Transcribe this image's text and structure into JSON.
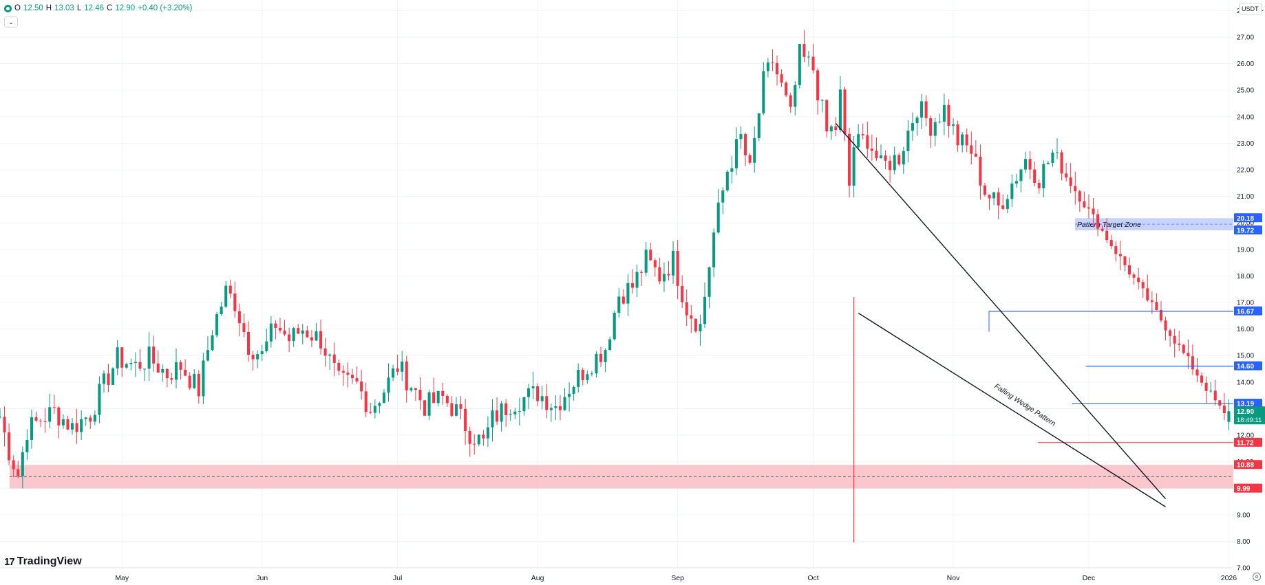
{
  "header": {
    "ohlc": {
      "open_label": "O",
      "open": "12.50",
      "high_label": "H",
      "high": "13.03",
      "low_label": "L",
      "low": "12.46",
      "close_label": "C",
      "close": "12.90",
      "change": "+0.40 (+3.20%)"
    },
    "collapse_icon": "chevron-down-icon"
  },
  "currency": {
    "label": "USDT",
    "icon": "chevron-down-icon"
  },
  "logo": {
    "mark": "17",
    "text": "TradingView"
  },
  "colors": {
    "up": "#089981",
    "down": "#f23645",
    "blue": "#2962ff",
    "support_zone": "#f9c1c6",
    "target_zone": "#c3ceff"
  },
  "chart_data": {
    "type": "candlestick",
    "title": "",
    "ylim": [
      7.0,
      28.4
    ],
    "y_ticks": [
      "7.00",
      "8.00",
      "9.00",
      "10.00",
      "11.00",
      "12.00",
      "13.00",
      "14.00",
      "15.00",
      "16.00",
      "17.00",
      "18.00",
      "19.00",
      "20.00",
      "21.00",
      "22.00",
      "23.00",
      "24.00",
      "25.00",
      "26.00",
      "27.00",
      "28.00"
    ],
    "x_ticks": [
      {
        "label": "May",
        "date": "2025-05-01"
      },
      {
        "label": "Jun",
        "date": "2025-06-01"
      },
      {
        "label": "Jul",
        "date": "2025-07-01"
      },
      {
        "label": "Aug",
        "date": "2025-08-01"
      },
      {
        "label": "Sep",
        "date": "2025-09-01"
      },
      {
        "label": "Oct",
        "date": "2025-10-01"
      },
      {
        "label": "Nov",
        "date": "2025-11-01"
      },
      {
        "label": "Dec",
        "date": "2025-12-01"
      },
      {
        "label": "2026",
        "date": "2026-01-01"
      }
    ],
    "x_range": [
      "2025-04-04",
      "2026-01-02"
    ],
    "anchors": [
      [
        "2025-04-04",
        12.7
      ],
      [
        "2025-04-06",
        11.4
      ],
      [
        "2025-04-08",
        10.5
      ],
      [
        "2025-04-10",
        12.2
      ],
      [
        "2025-04-13",
        12.6
      ],
      [
        "2025-04-16",
        12.9
      ],
      [
        "2025-04-20",
        12.3
      ],
      [
        "2025-04-24",
        12.8
      ],
      [
        "2025-04-27",
        13.9
      ],
      [
        "2025-04-30",
        14.9
      ],
      [
        "2025-05-04",
        14.6
      ],
      [
        "2025-05-07",
        14.9
      ],
      [
        "2025-05-11",
        14.3
      ],
      [
        "2025-05-14",
        14.6
      ],
      [
        "2025-05-18",
        13.7
      ],
      [
        "2025-05-21",
        16.0
      ],
      [
        "2025-05-24",
        17.4
      ],
      [
        "2025-05-26",
        17.0
      ],
      [
        "2025-05-29",
        15.4
      ],
      [
        "2025-06-01",
        15.0
      ],
      [
        "2025-06-04",
        16.2
      ],
      [
        "2025-06-07",
        15.6
      ],
      [
        "2025-06-10",
        16.0
      ],
      [
        "2025-06-14",
        15.6
      ],
      [
        "2025-06-18",
        14.0
      ],
      [
        "2025-06-22",
        13.9
      ],
      [
        "2025-06-25",
        13.0
      ],
      [
        "2025-06-28",
        13.7
      ],
      [
        "2025-07-01",
        14.6
      ],
      [
        "2025-07-04",
        13.9
      ],
      [
        "2025-07-07",
        13.1
      ],
      [
        "2025-07-11",
        13.4
      ],
      [
        "2025-07-14",
        12.9
      ],
      [
        "2025-07-17",
        12.1
      ],
      [
        "2025-07-20",
        11.7
      ],
      [
        "2025-07-22",
        12.6
      ],
      [
        "2025-07-26",
        13.2
      ],
      [
        "2025-08-01",
        13.6
      ],
      [
        "2025-08-05",
        13.1
      ],
      [
        "2025-08-08",
        13.8
      ],
      [
        "2025-08-12",
        14.6
      ],
      [
        "2025-08-16",
        15.3
      ],
      [
        "2025-08-19",
        17.3
      ],
      [
        "2025-08-22",
        17.6
      ],
      [
        "2025-08-25",
        18.6
      ],
      [
        "2025-08-28",
        18.0
      ],
      [
        "2025-08-31",
        18.6
      ],
      [
        "2025-09-03",
        16.8
      ],
      [
        "2025-09-06",
        16.1
      ],
      [
        "2025-09-09",
        19.6
      ],
      [
        "2025-09-12",
        22.0
      ],
      [
        "2025-09-15",
        23.2
      ],
      [
        "2025-09-17",
        21.9
      ],
      [
        "2025-09-20",
        25.3
      ],
      [
        "2025-09-22",
        26.1
      ],
      [
        "2025-09-24",
        25.1
      ],
      [
        "2025-09-26",
        24.0
      ],
      [
        "2025-09-28",
        26.3
      ],
      [
        "2025-10-01",
        25.8
      ],
      [
        "2025-10-04",
        23.4
      ],
      [
        "2025-10-07",
        24.8
      ],
      [
        "2025-10-10",
        22.9
      ],
      [
        "2025-10-13",
        23.2
      ],
      [
        "2025-10-16",
        22.1
      ],
      [
        "2025-10-20",
        22.5
      ],
      [
        "2025-10-24",
        24.4
      ],
      [
        "2025-10-27",
        23.7
      ],
      [
        "2025-10-30",
        24.3
      ],
      [
        "2025-11-02",
        23.1
      ],
      [
        "2025-11-05",
        22.7
      ],
      [
        "2025-11-08",
        21.2
      ],
      [
        "2025-11-11",
        20.6
      ],
      [
        "2025-11-14",
        21.5
      ],
      [
        "2025-11-17",
        22.4
      ],
      [
        "2025-11-20",
        21.7
      ],
      [
        "2025-11-23",
        22.6
      ],
      [
        "2025-11-25",
        22.0
      ],
      [
        "2025-10-06",
        23.6
      ],
      [
        "2025-10-09",
        21.4
      ]
    ],
    "ohlc_bar": {
      "open": 12.5,
      "high": 13.03,
      "low": 12.46,
      "close": 12.9
    },
    "levels": [
      {
        "value": 20.18,
        "label": "20.18",
        "color": "#2962ff"
      },
      {
        "value": 19.72,
        "label": "19.72",
        "color": "#2962ff"
      },
      {
        "value": 16.67,
        "label": "16.67",
        "color": "#2962ff"
      },
      {
        "value": 14.6,
        "label": "14.60",
        "color": "#2962ff"
      },
      {
        "value": 13.19,
        "label": "13.19",
        "color": "#2962ff"
      },
      {
        "value": 11.72,
        "label": "11.72",
        "color": "#f23645"
      },
      {
        "value": 10.88,
        "label": "10.88",
        "color": "#f23645"
      },
      {
        "value": 9.99,
        "label": "9.99",
        "color": "#f23645"
      }
    ],
    "last_price": {
      "value": "12.90",
      "countdown": "18:49:11"
    },
    "annotations": {
      "target_zone": "Pattern Target Zone",
      "wedge": "Falling Wedge Pattern"
    },
    "grid": true
  }
}
